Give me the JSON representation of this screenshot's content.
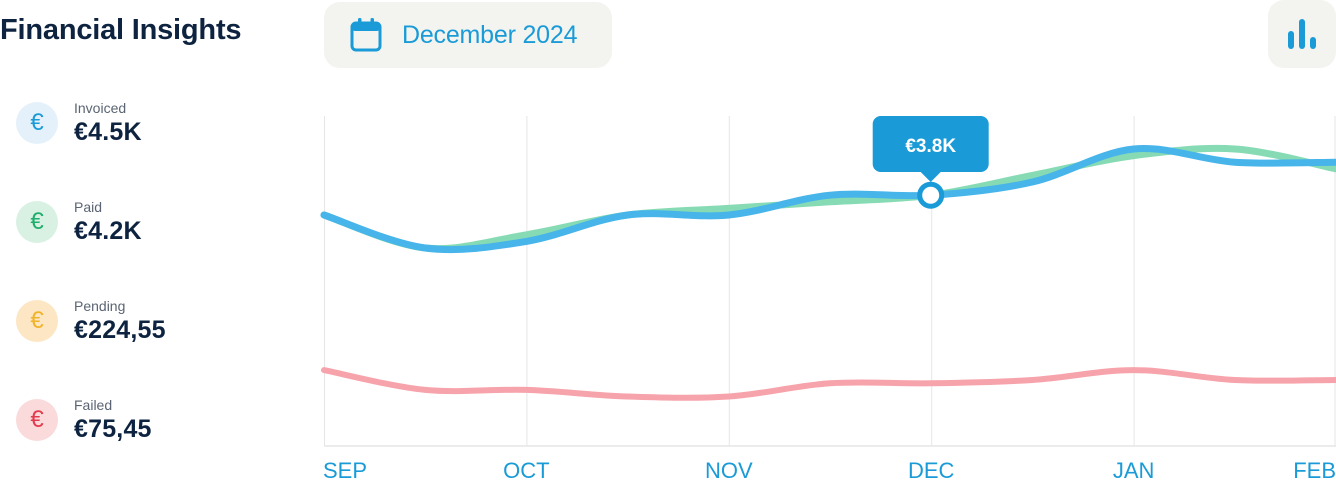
{
  "header": {
    "title": "Financial Insights",
    "date_label": "December 2024"
  },
  "stats": [
    {
      "label": "Invoiced",
      "value": "€4.5K",
      "icon": "euro-icon",
      "color": "#1a9bd7",
      "bg": "#e5f1fa"
    },
    {
      "label": "Paid",
      "value": "€4.2K",
      "icon": "euro-icon",
      "color": "#1fae6c",
      "bg": "#d8f1e3"
    },
    {
      "label": "Pending",
      "value": "€224,55",
      "icon": "euro-icon",
      "color": "#f0b429",
      "bg": "#fde6c4"
    },
    {
      "label": "Failed",
      "value": "€75,45",
      "icon": "euro-icon",
      "color": "#e33b4d",
      "bg": "#fadada"
    }
  ],
  "tooltip": {
    "label": "€3.8K",
    "month_index": 3
  },
  "colors": {
    "accent": "#1a9bd7",
    "invoiced_line": "#47b4ea",
    "paid_line": "#86dbb4",
    "failed_line": "#f7a3ab",
    "grid": "#e6e6e6"
  },
  "chart_data": {
    "type": "line",
    "categories": [
      "SEP",
      "OCT",
      "NOV",
      "DEC",
      "JAN",
      "FEB"
    ],
    "x": [
      0,
      0.5,
      1,
      1.5,
      2,
      2.5,
      3,
      3.5,
      4,
      4.5,
      5
    ],
    "ylim": [
      0,
      5
    ],
    "grid": true,
    "series": [
      {
        "key": "paid",
        "values": [
          3.5,
          3.0,
          3.2,
          3.5,
          3.6,
          3.7,
          3.8,
          4.1,
          4.4,
          4.5,
          4.2
        ],
        "color": "#86dbb4"
      },
      {
        "key": "invoiced",
        "values": [
          3.5,
          3.0,
          3.1,
          3.5,
          3.5,
          3.8,
          3.8,
          4.0,
          4.5,
          4.3,
          4.3
        ],
        "color": "#47b4ea"
      },
      {
        "key": "failed",
        "values": [
          1.15,
          0.85,
          0.85,
          0.75,
          0.75,
          0.95,
          0.95,
          1.0,
          1.15,
          1.0,
          1.0
        ],
        "color": "#f7a3ab"
      }
    ]
  }
}
